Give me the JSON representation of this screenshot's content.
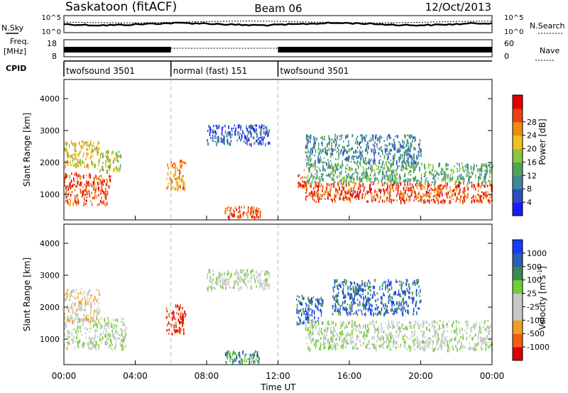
{
  "header": {
    "station": "Saskatoon (fitACF)",
    "beam": "Beam 06",
    "date": "12/Oct/2013"
  },
  "strip_panels": {
    "nsky_label": "N.Sky",
    "nsearch_label": "N.Search",
    "noise_ticks": [
      "10^5",
      "10^0"
    ],
    "freq_label_1": "Freq.",
    "freq_label_2": "[MHz]",
    "freq_ticks": [
      "18",
      "8"
    ],
    "nave_label": "Nave",
    "nave_ticks": [
      "60",
      "0"
    ],
    "cpid_label": "CPID"
  },
  "cpid_segments": [
    {
      "label": "twofsound 3501",
      "start_hour": 0,
      "end_hour": 6
    },
    {
      "label": "normal (fast) 151",
      "start_hour": 6,
      "end_hour": 12
    },
    {
      "label": "twofsound 3501",
      "start_hour": 12,
      "end_hour": 24
    }
  ],
  "chart_data": [
    {
      "type": "heatmap",
      "parameter": "Power",
      "ylabel": "Slant Range [km]",
      "xlim_hours": [
        0,
        24
      ],
      "ylim_km": [
        200,
        4600
      ],
      "yticks": [
        1000,
        2000,
        3000,
        4000
      ],
      "colorbar_label": "Power [dB]",
      "colorbar_ticks": [
        "4",
        "8",
        "12",
        "16",
        "20",
        "24",
        "28"
      ],
      "colors": [
        "#1a1aff",
        "#2a4fc0",
        "#3a8a9a",
        "#4fa35a",
        "#8dc63f",
        "#f0c020",
        "#f08a10",
        "#f04010",
        "#e00000"
      ],
      "echo_regions": [
        {
          "x0": 0.0,
          "x1": 2.6,
          "y0": 700,
          "y1": 1700,
          "level": 7
        },
        {
          "x0": 0.0,
          "x1": 2.0,
          "y0": 1900,
          "y1": 2700,
          "level": 5
        },
        {
          "x0": 2.0,
          "x1": 3.2,
          "y0": 1700,
          "y1": 2400,
          "level": 4
        },
        {
          "x0": 5.7,
          "x1": 6.8,
          "y0": 1200,
          "y1": 2100,
          "level": 6
        },
        {
          "x0": 8.0,
          "x1": 11.5,
          "y0": 2600,
          "y1": 3200,
          "level": 1
        },
        {
          "x0": 9.0,
          "x1": 11.0,
          "y0": 300,
          "y1": 650,
          "level": 7
        },
        {
          "x0": 13.1,
          "x1": 13.5,
          "y0": 1200,
          "y1": 1800,
          "level": 7
        },
        {
          "x0": 13.5,
          "x1": 24.0,
          "y0": 800,
          "y1": 1400,
          "level": 7
        },
        {
          "x0": 13.5,
          "x1": 24.0,
          "y0": 1400,
          "y1": 2000,
          "level": 3
        },
        {
          "x0": 13.5,
          "x1": 20.0,
          "y0": 2000,
          "y1": 2900,
          "level": 2
        }
      ]
    },
    {
      "type": "heatmap",
      "parameter": "Velocity",
      "ylabel": "Slant Range [km]",
      "xlabel": "Time UT",
      "xlim_hours": [
        0,
        24
      ],
      "ylim_km": [
        200,
        4600
      ],
      "yticks": [
        1000,
        2000,
        3000,
        4000
      ],
      "xticks": [
        "00:00",
        "04:00",
        "08:00",
        "12:00",
        "16:00",
        "20:00",
        "00:00"
      ],
      "colorbar_label": "Velocity [m s",
      "colorbar_label_sup": "-1",
      "colorbar_label_end": "]",
      "colorbar_ticks": [
        "1000",
        "500",
        "100",
        "25",
        "-25",
        "-100",
        "-500",
        "-1000"
      ],
      "colors": [
        "#1a3aff",
        "#2a60b0",
        "#3a8a50",
        "#6fd030",
        "#c8c8c8",
        "#c8c8c8",
        "#f0a020",
        "#f06010",
        "#e00000"
      ],
      "echo_regions": [
        {
          "x0": 0.0,
          "x1": 3.5,
          "y0": 700,
          "y1": 1700,
          "level": 4
        },
        {
          "x0": 0.0,
          "x1": 2.0,
          "y0": 1600,
          "y1": 2600,
          "level": 3
        },
        {
          "x0": 5.7,
          "x1": 6.8,
          "y0": 1200,
          "y1": 2100,
          "level": 0
        },
        {
          "x0": 8.0,
          "x1": 11.5,
          "y0": 2600,
          "y1": 3200,
          "level": 4
        },
        {
          "x0": 9.0,
          "x1": 11.0,
          "y0": 300,
          "y1": 650,
          "level": 6
        },
        {
          "x0": 13.0,
          "x1": 14.5,
          "y0": 1500,
          "y1": 2400,
          "level": 7
        },
        {
          "x0": 13.5,
          "x1": 24.0,
          "y0": 700,
          "y1": 1600,
          "level": 4
        },
        {
          "x0": 15.0,
          "x1": 20.0,
          "y0": 1800,
          "y1": 2900,
          "level": 7
        }
      ]
    }
  ]
}
